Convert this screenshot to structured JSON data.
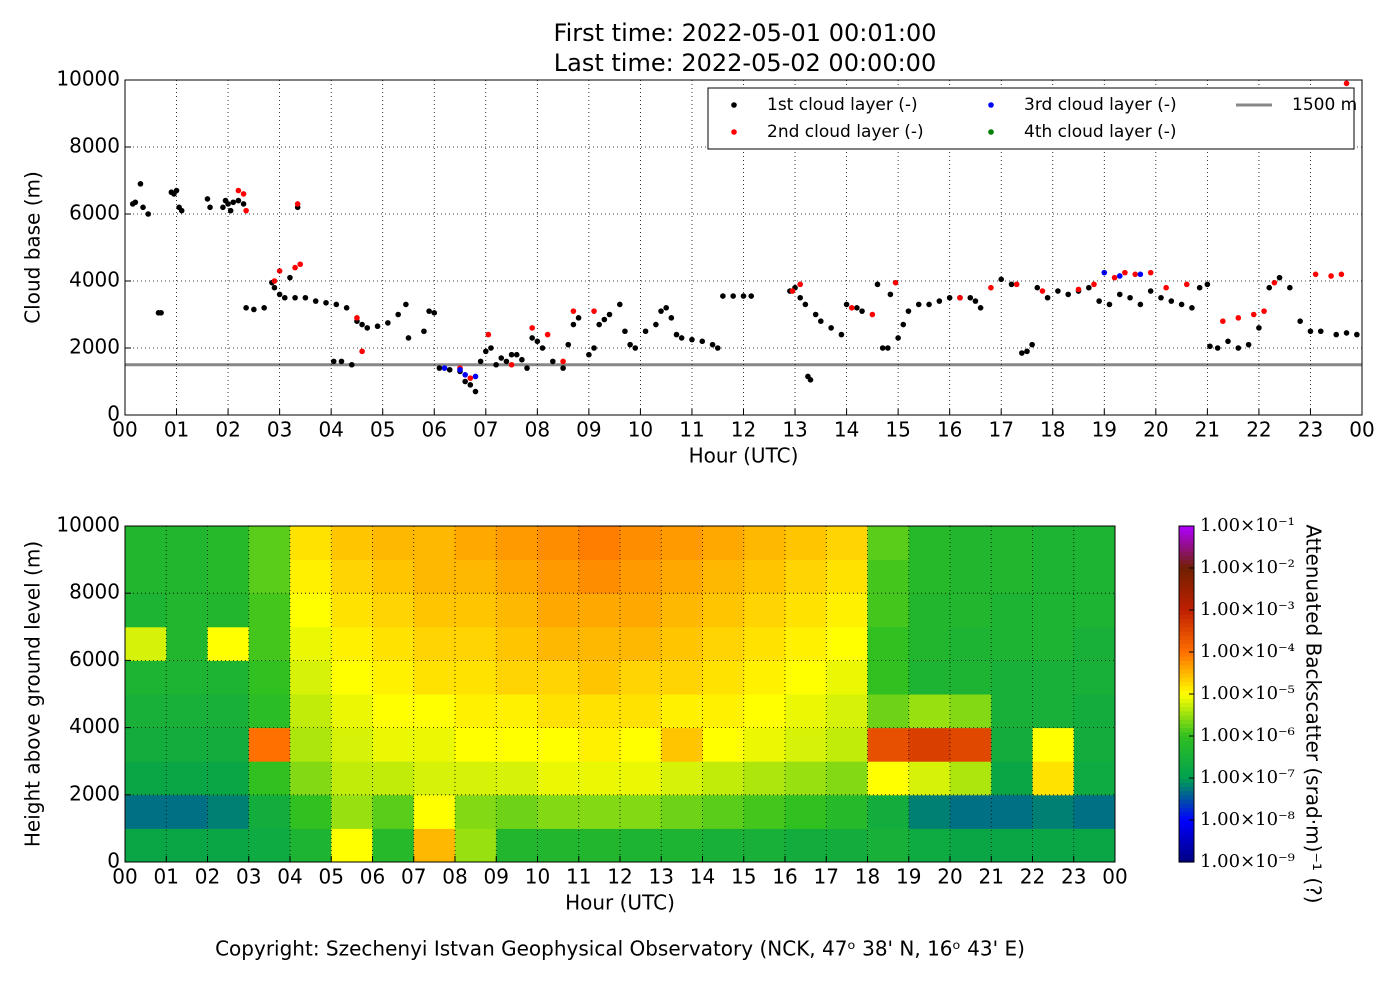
{
  "chart_data": [
    {
      "type": "scatter",
      "title": "First time: 2022-05-01 00:01:00",
      "subtitle": "Last time: 2022-05-02 00:00:00",
      "xlabel": "Hour (UTC)",
      "ylabel": "Cloud base (m)",
      "xlim": [
        0,
        24
      ],
      "ylim": [
        0,
        10000
      ],
      "xticks": [
        {
          "value": 0,
          "label": "00"
        },
        {
          "value": 1,
          "label": "01"
        },
        {
          "value": 2,
          "label": "02"
        },
        {
          "value": 3,
          "label": "03"
        },
        {
          "value": 4,
          "label": "04"
        },
        {
          "value": 5,
          "label": "05"
        },
        {
          "value": 6,
          "label": "06"
        },
        {
          "value": 7,
          "label": "07"
        },
        {
          "value": 8,
          "label": "08"
        },
        {
          "value": 9,
          "label": "09"
        },
        {
          "value": 10,
          "label": "10"
        },
        {
          "value": 11,
          "label": "11"
        },
        {
          "value": 12,
          "label": "12"
        },
        {
          "value": 13,
          "label": "13"
        },
        {
          "value": 14,
          "label": "14"
        },
        {
          "value": 15,
          "label": "15"
        },
        {
          "value": 16,
          "label": "16"
        },
        {
          "value": 17,
          "label": "17"
        },
        {
          "value": 18,
          "label": "18"
        },
        {
          "value": 19,
          "label": "19"
        },
        {
          "value": 20,
          "label": "20"
        },
        {
          "value": 21,
          "label": "21"
        },
        {
          "value": 22,
          "label": "22"
        },
        {
          "value": 23,
          "label": "23"
        },
        {
          "value": 24,
          "label": "00"
        }
      ],
      "yticks": [
        0,
        2000,
        4000,
        6000,
        8000,
        10000
      ],
      "grid": true,
      "legend": "upper right",
      "series": [
        {
          "name": "1st cloud layer (-)",
          "color": "#000000",
          "x": [
            0.15,
            0.2,
            0.3,
            0.35,
            0.45,
            0.65,
            0.7,
            0.9,
            0.95,
            1.0,
            1.05,
            1.1,
            1.6,
            1.65,
            1.9,
            1.95,
            2.0,
            2.05,
            2.1,
            2.2,
            2.3,
            2.35,
            2.5,
            2.7,
            2.85,
            2.9,
            3.0,
            3.1,
            3.2,
            3.3,
            3.35,
            3.5,
            3.7,
            3.9,
            4.1,
            4.3,
            4.05,
            4.2,
            4.4,
            4.5,
            4.6,
            4.7,
            4.9,
            5.1,
            5.3,
            5.45,
            5.5,
            5.8,
            5.9,
            6.0,
            6.1,
            6.3,
            6.5,
            6.6,
            6.7,
            6.8,
            6.9,
            7.0,
            7.1,
            7.2,
            7.3,
            7.4,
            7.5,
            7.6,
            7.7,
            7.8,
            7.9,
            8.0,
            8.1,
            8.3,
            8.5,
            8.6,
            8.7,
            8.8,
            9.0,
            9.1,
            9.2,
            9.3,
            9.4,
            9.6,
            9.7,
            9.8,
            9.9,
            10.1,
            10.3,
            10.4,
            10.5,
            10.6,
            10.7,
            10.8,
            11.0,
            11.2,
            11.4,
            11.5,
            11.6,
            11.8,
            12.0,
            12.15,
            12.9,
            13.0,
            13.1,
            13.2,
            13.25,
            13.3,
            13.4,
            13.5,
            13.7,
            13.9,
            14.0,
            14.2,
            14.3,
            14.6,
            14.7,
            14.8,
            14.85,
            15.0,
            15.1,
            15.2,
            15.4,
            15.6,
            15.8,
            16.0,
            16.2,
            16.4,
            16.5,
            16.6,
            17.0,
            17.2,
            17.4,
            17.5,
            17.6,
            17.7,
            17.9,
            18.1,
            18.3,
            18.5,
            18.7,
            18.9,
            19.1,
            19.3,
            19.5,
            19.7,
            19.9,
            20.1,
            20.3,
            20.5,
            20.7,
            20.85,
            21.0,
            21.05,
            21.2,
            21.4,
            21.6,
            21.8,
            22.0,
            22.2,
            22.4,
            22.6,
            22.8,
            23.0,
            23.2,
            23.5,
            23.7,
            23.9
          ],
          "values": [
            6300,
            6350,
            6900,
            6200,
            6000,
            3050,
            3050,
            6650,
            6600,
            6700,
            6200,
            6100,
            6450,
            6200,
            6200,
            6400,
            6300,
            6100,
            6350,
            6400,
            6300,
            3200,
            3150,
            3200,
            3950,
            3800,
            3600,
            3500,
            4100,
            3500,
            6200,
            3500,
            3400,
            3350,
            3300,
            3200,
            1600,
            1600,
            1500,
            2800,
            2700,
            2600,
            2650,
            2750,
            3000,
            3300,
            2300,
            2500,
            3100,
            3050,
            1400,
            1350,
            1300,
            1000,
            900,
            700,
            1600,
            1900,
            2000,
            1500,
            1700,
            1600,
            1800,
            1800,
            1650,
            1400,
            2300,
            2200,
            2000,
            1600,
            1400,
            2100,
            2700,
            2900,
            1800,
            2000,
            2700,
            2850,
            3000,
            3300,
            2500,
            2100,
            2000,
            2500,
            2700,
            3100,
            3200,
            2900,
            2400,
            2300,
            2250,
            2200,
            2100,
            2000,
            3550,
            3550,
            3550,
            3550,
            3700,
            3800,
            3500,
            3300,
            1150,
            1050,
            3000,
            2800,
            2600,
            2400,
            3300,
            3200,
            3100,
            3900,
            2000,
            2000,
            3600,
            2300,
            2700,
            3100,
            3300,
            3300,
            3400,
            3500,
            3500,
            3500,
            3400,
            3200,
            4050,
            3900,
            1850,
            1900,
            2100,
            3800,
            3500,
            3700,
            3600,
            3700,
            3800,
            3400,
            3300,
            3600,
            3500,
            3300,
            3700,
            3500,
            3400,
            3300,
            3200,
            3800,
            3900,
            2050,
            2000,
            2200,
            2000,
            2100,
            2600,
            3800,
            4100,
            3800,
            2800,
            2500,
            2500,
            2400,
            2450,
            2400
          ]
        },
        {
          "name": "2nd cloud layer (-)",
          "color": "#ff0000",
          "x": [
            2.2,
            2.3,
            2.35,
            2.9,
            3.0,
            3.3,
            3.4,
            3.35,
            4.5,
            4.6,
            6.5,
            6.7,
            7.05,
            7.5,
            7.9,
            8.2,
            8.5,
            8.7,
            9.1,
            12.95,
            13.1,
            14.1,
            14.5,
            14.95,
            16.2,
            16.8,
            17.3,
            17.8,
            18.5,
            18.8,
            19.2,
            19.4,
            19.6,
            19.9,
            20.2,
            20.6,
            21.3,
            21.6,
            21.9,
            22.1,
            22.3,
            23.1,
            23.4,
            23.6,
            23.7
          ],
          "values": [
            6700,
            6600,
            6100,
            4000,
            4300,
            4400,
            4500,
            6300,
            2900,
            1900,
            1400,
            1100,
            2400,
            1500,
            2600,
            2400,
            1600,
            3100,
            3100,
            3700,
            3900,
            3200,
            3000,
            3950,
            3500,
            3800,
            3900,
            3700,
            3750,
            3900,
            4100,
            4250,
            4200,
            4250,
            3800,
            3900,
            2800,
            2900,
            3000,
            3100,
            3950,
            4200,
            4150,
            4200,
            9900
          ]
        },
        {
          "name": "3rd cloud layer (-)",
          "color": "#0000ff",
          "x": [
            6.2,
            6.5,
            6.6,
            6.8,
            19.0,
            19.3,
            19.7
          ],
          "values": [
            1400,
            1350,
            1200,
            1150,
            4250,
            4150,
            4200
          ]
        },
        {
          "name": "4th cloud layer (-)",
          "color": "#008000",
          "x": [],
          "values": []
        }
      ],
      "reference_lines": [
        {
          "name": "1500 m",
          "value": 1500,
          "color": "#888888"
        }
      ]
    },
    {
      "type": "heatmap",
      "xlabel": "Hour (UTC)",
      "ylabel": "Height above ground level (m)",
      "xlim": [
        0,
        24
      ],
      "ylim": [
        0,
        10000
      ],
      "xticks": [
        {
          "value": 0,
          "label": "00"
        },
        {
          "value": 1,
          "label": "01"
        },
        {
          "value": 2,
          "label": "02"
        },
        {
          "value": 3,
          "label": "03"
        },
        {
          "value": 4,
          "label": "04"
        },
        {
          "value": 5,
          "label": "05"
        },
        {
          "value": 6,
          "label": "06"
        },
        {
          "value": 7,
          "label": "07"
        },
        {
          "value": 8,
          "label": "08"
        },
        {
          "value": 9,
          "label": "09"
        },
        {
          "value": 10,
          "label": "10"
        },
        {
          "value": 11,
          "label": "11"
        },
        {
          "value": 12,
          "label": "12"
        },
        {
          "value": 13,
          "label": "13"
        },
        {
          "value": 14,
          "label": "14"
        },
        {
          "value": 15,
          "label": "15"
        },
        {
          "value": 16,
          "label": "16"
        },
        {
          "value": 17,
          "label": "17"
        },
        {
          "value": 18,
          "label": "18"
        },
        {
          "value": 19,
          "label": "19"
        },
        {
          "value": 20,
          "label": "20"
        },
        {
          "value": 21,
          "label": "21"
        },
        {
          "value": 22,
          "label": "22"
        },
        {
          "value": 23,
          "label": "23"
        },
        {
          "value": 24,
          "label": "00"
        }
      ],
      "yticks": [
        0,
        2000,
        4000,
        6000,
        8000,
        10000
      ],
      "grid": true,
      "x_edges": [
        0,
        1,
        2,
        3,
        4,
        5,
        6,
        7,
        8,
        9,
        10,
        11,
        12,
        13,
        14,
        15,
        16,
        17,
        18,
        19,
        20,
        21,
        22,
        23,
        24
      ],
      "y_edges": [
        0,
        1000,
        2000,
        3000,
        4000,
        5000,
        6000,
        7000,
        8000,
        9000,
        10000
      ],
      "z": [
        [
          -6.8,
          -6.8,
          -6.8,
          -6.7,
          -6.4,
          -5.0,
          -6.2,
          -4.5,
          -5.5,
          -6.3,
          -6.3,
          -6.3,
          -6.4,
          -6.4,
          -6.5,
          -6.5,
          -6.6,
          -6.6,
          -6.5,
          -6.7,
          -6.8,
          -6.8,
          -6.8,
          -6.8
        ],
        [
          -7.3,
          -7.3,
          -7.2,
          -6.6,
          -6.0,
          -5.5,
          -5.8,
          -5.0,
          -5.6,
          -5.7,
          -5.6,
          -5.6,
          -5.6,
          -5.7,
          -5.8,
          -5.9,
          -6.0,
          -6.2,
          -6.6,
          -7.2,
          -7.3,
          -7.3,
          -7.2,
          -7.3
        ],
        [
          -6.8,
          -6.8,
          -6.8,
          -6.0,
          -5.6,
          -5.3,
          -5.3,
          -5.2,
          -5.2,
          -5.2,
          -5.1,
          -5.1,
          -5.1,
          -5.2,
          -5.3,
          -5.4,
          -5.5,
          -5.6,
          -5.0,
          -5.2,
          -5.4,
          -6.8,
          -4.8,
          -6.7
        ],
        [
          -6.6,
          -6.6,
          -6.6,
          -4.0,
          -5.4,
          -5.2,
          -5.1,
          -5.1,
          -5.0,
          -5.0,
          -5.0,
          -4.9,
          -5.0,
          -4.6,
          -5.0,
          -5.1,
          -5.2,
          -5.3,
          -3.6,
          -3.4,
          -3.5,
          -6.6,
          -5.0,
          -6.6
        ],
        [
          -6.5,
          -6.5,
          -6.5,
          -6.1,
          -5.3,
          -5.1,
          -5.0,
          -5.0,
          -4.9,
          -4.9,
          -4.8,
          -4.8,
          -4.8,
          -4.9,
          -4.9,
          -5.0,
          -5.1,
          -5.2,
          -5.7,
          -5.5,
          -5.6,
          -6.5,
          -6.5,
          -6.6
        ],
        [
          -6.4,
          -6.4,
          -6.4,
          -6.0,
          -5.2,
          -5.0,
          -4.9,
          -4.8,
          -4.8,
          -4.7,
          -4.7,
          -4.6,
          -4.7,
          -4.7,
          -4.8,
          -4.9,
          -5.0,
          -5.1,
          -6.0,
          -6.4,
          -6.4,
          -6.5,
          -6.5,
          -6.5
        ],
        [
          -5.2,
          -6.3,
          -5.0,
          -5.9,
          -5.1,
          -4.9,
          -4.8,
          -4.7,
          -4.7,
          -4.6,
          -4.5,
          -4.5,
          -4.5,
          -4.6,
          -4.7,
          -4.8,
          -4.9,
          -5.0,
          -6.0,
          -6.3,
          -6.4,
          -6.4,
          -6.4,
          -6.5
        ],
        [
          -6.4,
          -6.3,
          -6.3,
          -5.9,
          -5.0,
          -4.8,
          -4.7,
          -4.6,
          -4.6,
          -4.5,
          -4.4,
          -4.4,
          -4.4,
          -4.5,
          -4.6,
          -4.7,
          -4.8,
          -4.9,
          -5.9,
          -6.3,
          -6.3,
          -6.4,
          -6.4,
          -6.4
        ],
        [
          -6.3,
          -6.3,
          -6.2,
          -5.8,
          -4.9,
          -4.7,
          -4.6,
          -4.5,
          -4.5,
          -4.4,
          -4.3,
          -4.2,
          -4.3,
          -4.4,
          -4.5,
          -4.6,
          -4.7,
          -4.8,
          -5.9,
          -6.2,
          -6.3,
          -6.3,
          -6.4,
          -6.4
        ],
        [
          -6.3,
          -6.3,
          -6.2,
          -5.8,
          -4.8,
          -4.6,
          -4.5,
          -4.5,
          -4.4,
          -4.3,
          -4.2,
          -4.1,
          -4.2,
          -4.3,
          -4.4,
          -4.5,
          -4.6,
          -4.7,
          -5.8,
          -6.2,
          -6.3,
          -6.3,
          -6.4,
          -6.4
        ]
      ],
      "colorbar": {
        "label": "Attenuated Backscatter (srad·m)⁻¹  (?)",
        "lim": [
          -9,
          -1
        ],
        "ticks": [
          {
            "value": -9,
            "label": "1.00×10⁻⁹"
          },
          {
            "value": -8,
            "label": "1.00×10⁻⁸"
          },
          {
            "value": -7,
            "label": "1.00×10⁻⁷"
          },
          {
            "value": -6,
            "label": "1.00×10⁻⁶"
          },
          {
            "value": -5,
            "label": "1.00×10⁻⁵"
          },
          {
            "value": -4,
            "label": "1.00×10⁻⁴"
          },
          {
            "value": -3,
            "label": "1.00×10⁻³"
          },
          {
            "value": -2,
            "label": "1.00×10⁻²"
          },
          {
            "value": -1,
            "label": "1.00×10⁻¹"
          }
        ],
        "colors": [
          "#00007f",
          "#0000ff",
          "#00a050",
          "#30c020",
          "#ffff00",
          "#ff7000",
          "#c02000",
          "#702000",
          "#b000ff"
        ]
      }
    }
  ],
  "footer": "Copyright: Szechenyi Istvan Geophysical Observatory (NCK, 47ᵒ 38' N, 16ᵒ 43' E)"
}
